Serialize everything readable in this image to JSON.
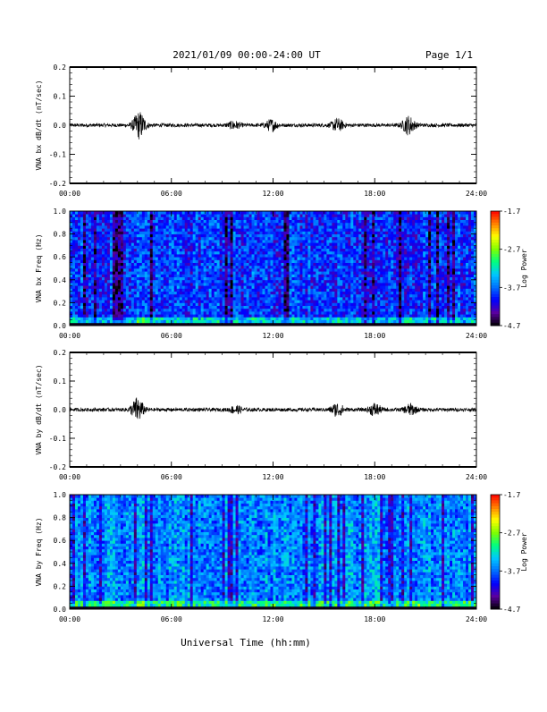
{
  "header": {
    "title": "2021/01/09  00:00-24:00 UT",
    "page": "Page 1/1"
  },
  "xaxis_title": "Universal Time (hh:mm)",
  "colors": {
    "trace": "#000000",
    "colormap": [
      "#000000",
      "#5a00a0",
      "#0000ff",
      "#0070ff",
      "#00c8ff",
      "#00ff80",
      "#80ff00",
      "#ffff00",
      "#ff8000",
      "#ff0000"
    ]
  },
  "chart_data": [
    {
      "type": "line",
      "ylabel": "VNA bx dB/dt (nT/sec)",
      "xticks": [
        "00:00",
        "06:00",
        "12:00",
        "18:00",
        "24:00"
      ],
      "yticks": [
        "0.2",
        "0.1",
        "0.0",
        "-0.1",
        "-0.2"
      ],
      "ylim": [
        -0.2,
        0.2
      ],
      "xlim_hours": [
        0,
        24
      ],
      "baseline": 0.0,
      "noise_amplitude": 0.006,
      "bursts": [
        {
          "t": 4.1,
          "amp": 0.045
        },
        {
          "t": 9.7,
          "amp": 0.012
        },
        {
          "t": 11.9,
          "amp": 0.018
        },
        {
          "t": 15.8,
          "amp": 0.02
        },
        {
          "t": 20.0,
          "amp": 0.03
        }
      ]
    },
    {
      "type": "heatmap",
      "ylabel": "VNA bx Freq (Hz)",
      "xticks": [
        "00:00",
        "06:00",
        "12:00",
        "18:00",
        "24:00"
      ],
      "yticks": [
        "1.0",
        "0.8",
        "0.6",
        "0.4",
        "0.2",
        "0.0"
      ],
      "ylim": [
        0,
        1.0
      ],
      "colorbar": {
        "label": "Log Power",
        "ticks": [
          "-1.7",
          "-2.7",
          "-3.7",
          "-4.7"
        ],
        "range": [
          -4.7,
          -1.7
        ]
      },
      "mean_level": -3.9
    },
    {
      "type": "line",
      "ylabel": "VNA by dB/dt (nT/sec)",
      "xticks": [
        "00:00",
        "06:00",
        "12:00",
        "18:00",
        "24:00"
      ],
      "yticks": [
        "0.2",
        "0.1",
        "0.0",
        "-0.1",
        "-0.2"
      ],
      "ylim": [
        -0.2,
        0.2
      ],
      "xlim_hours": [
        0,
        24
      ],
      "baseline": 0.0,
      "noise_amplitude": 0.006,
      "bursts": [
        {
          "t": 4.0,
          "amp": 0.04
        },
        {
          "t": 9.8,
          "amp": 0.012
        },
        {
          "t": 15.8,
          "amp": 0.022
        },
        {
          "t": 18.0,
          "amp": 0.02
        },
        {
          "t": 20.1,
          "amp": 0.018
        }
      ]
    },
    {
      "type": "heatmap",
      "ylabel": "VNA by Freq (Hz)",
      "xticks": [
        "00:00",
        "06:00",
        "12:00",
        "18:00",
        "24:00"
      ],
      "yticks": [
        "1.0",
        "0.8",
        "0.6",
        "0.4",
        "0.2",
        "0.0"
      ],
      "ylim": [
        0,
        1.0
      ],
      "colorbar": {
        "label": "Log Power",
        "ticks": [
          "-1.7",
          "-2.7",
          "-3.7",
          "-4.7"
        ],
        "range": [
          -4.7,
          -1.7
        ]
      },
      "mean_level": -3.6
    }
  ]
}
